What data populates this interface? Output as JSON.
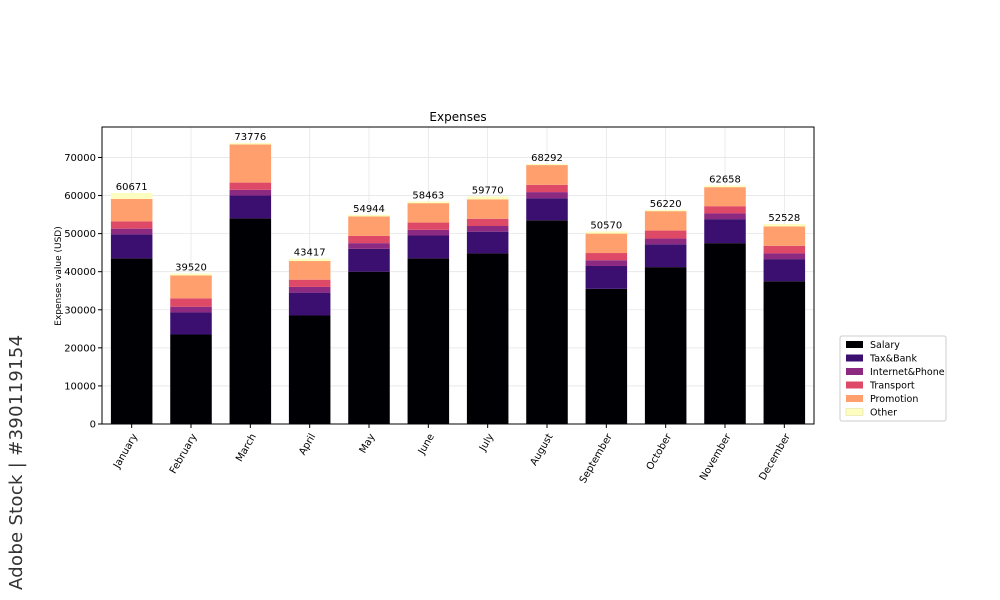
{
  "chart_data": {
    "type": "bar",
    "stacked": true,
    "title": "Expenses",
    "xlabel": "",
    "ylabel": "Expenses value (USD)",
    "ylim": [
      0,
      78000
    ],
    "yticks": [
      0,
      10000,
      20000,
      30000,
      40000,
      50000,
      60000,
      70000
    ],
    "grid": true,
    "legend_position": "outside-right",
    "categories": [
      "January",
      "February",
      "March",
      "April",
      "May",
      "June",
      "July",
      "August",
      "September",
      "October",
      "November",
      "December"
    ],
    "totals": [
      60671,
      39520,
      73776,
      43417,
      54944,
      58463,
      59770,
      68292,
      50570,
      56220,
      62658,
      52528
    ],
    "series": [
      {
        "name": "Salary",
        "color": "#000004",
        "values": [
          43500,
          23500,
          54000,
          28500,
          40000,
          43500,
          44800,
          53500,
          35500,
          41200,
          47500,
          37500
        ]
      },
      {
        "name": "Tax&Bank",
        "color": "#3b0f70",
        "values": [
          6300,
          5800,
          6000,
          6000,
          6000,
          6000,
          5700,
          5800,
          6000,
          6000,
          6300,
          5800
        ]
      },
      {
        "name": "Internet&Phone",
        "color": "#8c2981",
        "values": [
          1500,
          1500,
          1500,
          1500,
          1500,
          1500,
          1500,
          1600,
          1500,
          1500,
          1500,
          1500
        ]
      },
      {
        "name": "Transport",
        "color": "#de4968",
        "values": [
          1900,
          2200,
          1900,
          1900,
          1900,
          1900,
          1900,
          1900,
          1900,
          2100,
          1900,
          2000
        ]
      },
      {
        "name": "Promotion",
        "color": "#fe9f6d",
        "values": [
          5900,
          6000,
          10000,
          4900,
          5100,
          5100,
          5100,
          5200,
          5100,
          5100,
          5000,
          5100
        ]
      },
      {
        "name": "Other",
        "color": "#fcfdbf",
        "values": [
          1571,
          520,
          376,
          617,
          444,
          463,
          770,
          292,
          570,
          320,
          458,
          628
        ]
      }
    ]
  },
  "watermark": "Adobe Stock | #390119154"
}
